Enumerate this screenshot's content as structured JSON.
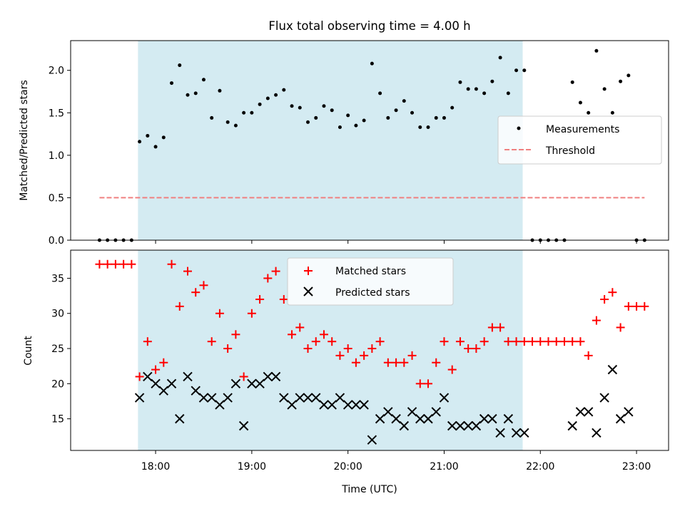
{
  "chart_data": [
    {
      "type": "scatter",
      "title": "Flux total observing time = 4.00 h",
      "ylabel": "Matched/Predicted stars",
      "xlabel": "",
      "xlim": [
        "17:07",
        "23:20"
      ],
      "ylim": [
        0,
        2.35
      ],
      "x_ticks": [
        "18:00",
        "19:00",
        "20:00",
        "21:00",
        "22:00",
        "23:00"
      ],
      "y_ticks": [
        "0.0",
        "0.5",
        "1.0",
        "1.5",
        "2.0"
      ],
      "shaded_region": {
        "start": "17:49",
        "end": "21:49",
        "color": "#d4ebf2"
      },
      "legend": {
        "position": "center-right"
      },
      "series": [
        {
          "name": "Measurements",
          "marker": "dot",
          "color": "#000000",
          "points": [
            [
              "17:25",
              0
            ],
            [
              "17:30",
              0
            ],
            [
              "17:35",
              0
            ],
            [
              "17:40",
              0
            ],
            [
              "17:45",
              0
            ],
            [
              "17:50",
              1.16
            ],
            [
              "17:55",
              1.23
            ],
            [
              "18:00",
              1.1
            ],
            [
              "18:05",
              1.21
            ],
            [
              "18:10",
              1.85
            ],
            [
              "18:15",
              2.06
            ],
            [
              "18:20",
              1.71
            ],
            [
              "18:25",
              1.73
            ],
            [
              "18:30",
              1.89
            ],
            [
              "18:35",
              1.44
            ],
            [
              "18:40",
              1.76
            ],
            [
              "18:45",
              1.39
            ],
            [
              "18:50",
              1.35
            ],
            [
              "18:55",
              1.5
            ],
            [
              "19:00",
              1.5
            ],
            [
              "19:05",
              1.6
            ],
            [
              "19:10",
              1.67
            ],
            [
              "19:15",
              1.71
            ],
            [
              "19:20",
              1.77
            ],
            [
              "19:25",
              1.58
            ],
            [
              "19:30",
              1.56
            ],
            [
              "19:35",
              1.39
            ],
            [
              "19:40",
              1.44
            ],
            [
              "19:45",
              1.58
            ],
            [
              "19:50",
              1.53
            ],
            [
              "19:55",
              1.33
            ],
            [
              "20:00",
              1.47
            ],
            [
              "20:05",
              1.35
            ],
            [
              "20:10",
              1.41
            ],
            [
              "20:15",
              2.08
            ],
            [
              "20:20",
              1.73
            ],
            [
              "20:25",
              1.44
            ],
            [
              "20:30",
              1.53
            ],
            [
              "20:35",
              1.64
            ],
            [
              "20:40",
              1.5
            ],
            [
              "20:45",
              1.33
            ],
            [
              "20:50",
              1.33
            ],
            [
              "20:55",
              1.44
            ],
            [
              "21:00",
              1.44
            ],
            [
              "21:05",
              1.56
            ],
            [
              "21:10",
              1.86
            ],
            [
              "21:15",
              1.78
            ],
            [
              "21:20",
              1.78
            ],
            [
              "21:25",
              1.73
            ],
            [
              "21:30",
              1.87
            ],
            [
              "21:35",
              2.15
            ],
            [
              "21:40",
              1.73
            ],
            [
              "21:45",
              2.0
            ],
            [
              "21:50",
              2.0
            ],
            [
              "21:55",
              0
            ],
            [
              "22:00",
              0
            ],
            [
              "22:05",
              0
            ],
            [
              "22:10",
              0
            ],
            [
              "22:15",
              0
            ],
            [
              "22:20",
              1.86
            ],
            [
              "22:25",
              1.62
            ],
            [
              "22:30",
              1.5
            ],
            [
              "22:35",
              2.23
            ],
            [
              "22:40",
              1.78
            ],
            [
              "22:45",
              1.5
            ],
            [
              "22:50",
              1.87
            ],
            [
              "22:55",
              1.94
            ],
            [
              "23:00",
              0
            ],
            [
              "23:05",
              0
            ]
          ]
        },
        {
          "name": "Threshold",
          "marker": "dashed-line",
          "color": "#f08080",
          "points": [
            [
              "17:25",
              0.5
            ],
            [
              "23:05",
              0.5
            ]
          ]
        }
      ]
    },
    {
      "type": "scatter",
      "title": "",
      "ylabel": "Count",
      "xlabel": "Time (UTC)",
      "xlim": [
        "17:07",
        "23:20"
      ],
      "ylim": [
        10.5,
        39
      ],
      "x_ticks": [
        "18:00",
        "19:00",
        "20:00",
        "21:00",
        "22:00",
        "23:00"
      ],
      "y_ticks": [
        "15",
        "20",
        "25",
        "30",
        "35"
      ],
      "shaded_region": {
        "start": "17:49",
        "end": "21:49",
        "color": "#d4ebf2"
      },
      "legend": {
        "position": "top-center"
      },
      "series": [
        {
          "name": "Matched stars",
          "marker": "plus",
          "color": "#ff0000",
          "points": [
            [
              "17:25",
              37
            ],
            [
              "17:30",
              37
            ],
            [
              "17:35",
              37
            ],
            [
              "17:40",
              37
            ],
            [
              "17:45",
              37
            ],
            [
              "17:50",
              21
            ],
            [
              "17:55",
              26
            ],
            [
              "18:00",
              22
            ],
            [
              "18:05",
              23
            ],
            [
              "18:10",
              37
            ],
            [
              "18:15",
              31
            ],
            [
              "18:20",
              36
            ],
            [
              "18:25",
              33
            ],
            [
              "18:30",
              34
            ],
            [
              "18:35",
              26
            ],
            [
              "18:40",
              30
            ],
            [
              "18:45",
              25
            ],
            [
              "18:50",
              27
            ],
            [
              "18:55",
              21
            ],
            [
              "19:00",
              30
            ],
            [
              "19:05",
              32
            ],
            [
              "19:10",
              35
            ],
            [
              "19:15",
              36
            ],
            [
              "19:20",
              32
            ],
            [
              "19:25",
              27
            ],
            [
              "19:30",
              28
            ],
            [
              "19:35",
              25
            ],
            [
              "19:40",
              26
            ],
            [
              "19:45",
              27
            ],
            [
              "19:50",
              26
            ],
            [
              "19:55",
              24
            ],
            [
              "20:00",
              25
            ],
            [
              "20:05",
              23
            ],
            [
              "20:10",
              24
            ],
            [
              "20:15",
              25
            ],
            [
              "20:20",
              26
            ],
            [
              "20:25",
              23
            ],
            [
              "20:30",
              23
            ],
            [
              "20:35",
              23
            ],
            [
              "20:40",
              24
            ],
            [
              "20:45",
              20
            ],
            [
              "20:50",
              20
            ],
            [
              "20:55",
              23
            ],
            [
              "21:00",
              26
            ],
            [
              "21:05",
              22
            ],
            [
              "21:10",
              26
            ],
            [
              "21:15",
              25
            ],
            [
              "21:20",
              25
            ],
            [
              "21:25",
              26
            ],
            [
              "21:30",
              28
            ],
            [
              "21:35",
              28
            ],
            [
              "21:40",
              26
            ],
            [
              "21:45",
              26
            ],
            [
              "21:50",
              26
            ],
            [
              "21:55",
              26
            ],
            [
              "22:00",
              26
            ],
            [
              "22:05",
              26
            ],
            [
              "22:10",
              26
            ],
            [
              "22:15",
              26
            ],
            [
              "22:20",
              26
            ],
            [
              "22:25",
              26
            ],
            [
              "22:30",
              24
            ],
            [
              "22:35",
              29
            ],
            [
              "22:40",
              32
            ],
            [
              "22:45",
              33
            ],
            [
              "22:50",
              28
            ],
            [
              "22:55",
              31
            ],
            [
              "23:00",
              31
            ],
            [
              "23:05",
              31
            ]
          ]
        },
        {
          "name": "Predicted stars",
          "marker": "x",
          "color": "#000000",
          "points": [
            [
              "17:50",
              18
            ],
            [
              "17:55",
              21
            ],
            [
              "18:00",
              20
            ],
            [
              "18:05",
              19
            ],
            [
              "18:10",
              20
            ],
            [
              "18:15",
              15
            ],
            [
              "18:20",
              21
            ],
            [
              "18:25",
              19
            ],
            [
              "18:30",
              18
            ],
            [
              "18:35",
              18
            ],
            [
              "18:40",
              17
            ],
            [
              "18:45",
              18
            ],
            [
              "18:50",
              20
            ],
            [
              "18:55",
              14
            ],
            [
              "19:00",
              20
            ],
            [
              "19:05",
              20
            ],
            [
              "19:10",
              21
            ],
            [
              "19:15",
              21
            ],
            [
              "19:20",
              18
            ],
            [
              "19:25",
              17
            ],
            [
              "19:30",
              18
            ],
            [
              "19:35",
              18
            ],
            [
              "19:40",
              18
            ],
            [
              "19:45",
              17
            ],
            [
              "19:50",
              17
            ],
            [
              "19:55",
              18
            ],
            [
              "20:00",
              17
            ],
            [
              "20:05",
              17
            ],
            [
              "20:10",
              17
            ],
            [
              "20:15",
              12
            ],
            [
              "20:20",
              15
            ],
            [
              "20:25",
              16
            ],
            [
              "20:30",
              15
            ],
            [
              "20:35",
              14
            ],
            [
              "20:40",
              16
            ],
            [
              "20:45",
              15
            ],
            [
              "20:50",
              15
            ],
            [
              "20:55",
              16
            ],
            [
              "21:00",
              18
            ],
            [
              "21:05",
              14
            ],
            [
              "21:10",
              14
            ],
            [
              "21:15",
              14
            ],
            [
              "21:20",
              14
            ],
            [
              "21:25",
              15
            ],
            [
              "21:30",
              15
            ],
            [
              "21:35",
              13
            ],
            [
              "21:40",
              15
            ],
            [
              "21:45",
              13
            ],
            [
              "21:50",
              13
            ],
            [
              "22:20",
              14
            ],
            [
              "22:25",
              16
            ],
            [
              "22:30",
              16
            ],
            [
              "22:35",
              13
            ],
            [
              "22:40",
              18
            ],
            [
              "22:45",
              22
            ],
            [
              "22:50",
              15
            ],
            [
              "22:55",
              16
            ]
          ]
        }
      ]
    }
  ]
}
